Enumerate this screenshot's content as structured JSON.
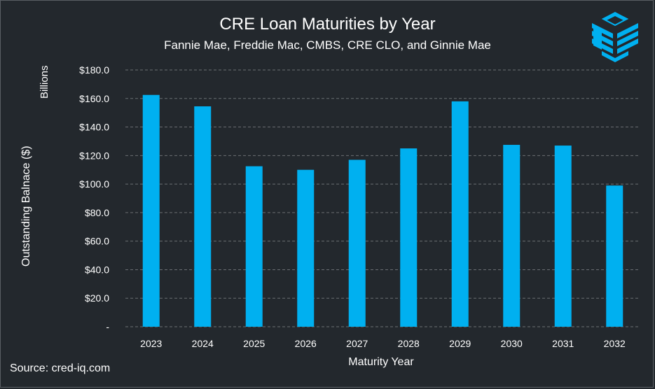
{
  "colors": {
    "background": "#23282d",
    "bar": "#00b0f0",
    "grid": "#6b6f73",
    "text": "#ffffff"
  },
  "logo_icon": "cube-logo-icon",
  "footer": {
    "source": "Source: cred-iq.com"
  },
  "chart_data": {
    "type": "bar",
    "title": "CRE Loan Maturities by Year",
    "subtitle": "Fannie Mae, Freddie Mac, CMBS, CRE CLO, and Ginnie Mae",
    "unit_label": "Billions",
    "ylabel": "Outstanding Balnace ($)",
    "xlabel": "Maturity Year",
    "categories": [
      "2023",
      "2024",
      "2025",
      "2026",
      "2027",
      "2028",
      "2029",
      "2030",
      "2031",
      "2032"
    ],
    "values": [
      162.5,
      154.5,
      112.5,
      110.0,
      117.0,
      125.0,
      158.0,
      127.5,
      127.0,
      99.0
    ],
    "ylim": [
      0,
      180
    ],
    "yticks": [
      0,
      20,
      40,
      60,
      80,
      100,
      120,
      140,
      160,
      180
    ],
    "ytick_labels": [
      "-",
      "$20.0",
      "$40.0",
      "$60.0",
      "$80.0",
      "$100.0",
      "$120.0",
      "$140.0",
      "$160.0",
      "$180.0"
    ],
    "grid": true,
    "legend": "none"
  }
}
